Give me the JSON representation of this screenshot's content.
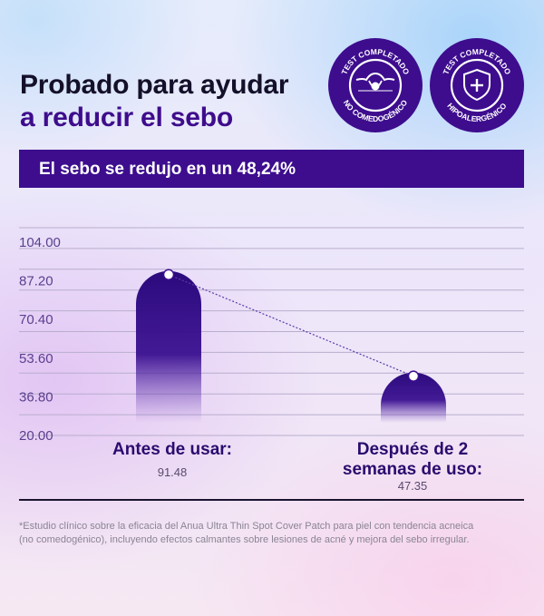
{
  "header": {
    "title_line1": "Probado para ayudar",
    "title_line2": "a reducir el sebo"
  },
  "badges": [
    {
      "top_text": "TEST COMPLETADO",
      "bottom_text": "NO COMEDOGÉNICO",
      "icon": "skin-pore-icon"
    },
    {
      "top_text": "TEST COMPLETADO",
      "bottom_text": "HIPOALERGÉNICO",
      "icon": "shield-plus-icon"
    }
  ],
  "banner": {
    "text": "El sebo se redujo en un 48,24%"
  },
  "chart_data": {
    "type": "bar",
    "categories": [
      "Antes de usar:",
      "Después de 2 semanas de uso:"
    ],
    "values": [
      91.48,
      47.35
    ],
    "ylim": [
      20.0,
      104.0
    ],
    "yticks": [
      "104.00",
      "87.20",
      "70.40",
      "53.60",
      "36.80",
      "20.00"
    ],
    "value_labels": [
      "91.48",
      "47.35"
    ],
    "grid": true,
    "connector_line": "dotted"
  },
  "colors": {
    "accent": "#3d0d8e",
    "bar_top": "#2e0a80",
    "title_dark": "#14102a"
  },
  "footnote": "*Estudio clínico sobre la eficacia del Anua Ultra Thin Spot Cover Patch para piel con tendencia acneica (no comedogénico), incluyendo efectos calmantes sobre lesiones de acné y mejora del sebo irregular."
}
